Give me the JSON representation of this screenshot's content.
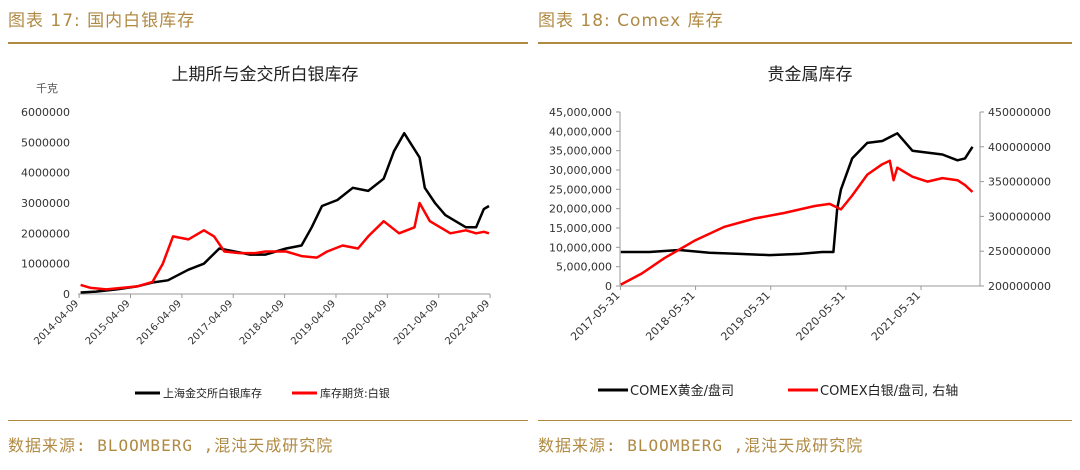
{
  "left": {
    "fig_label": "图表 17: 国内白银库存",
    "source": "数据来源: BLOOMBERG ,混沌天成研究院",
    "chart_title": "上期所与金交所白银库存",
    "unit_label": "千克",
    "legend": [
      "上海金交所白银库存",
      "库存期货:白银"
    ]
  },
  "right": {
    "fig_label": "图表 18: Comex 库存",
    "source": "数据来源: BLOOMBERG ,混沌天成研究院",
    "chart_title": "贵金属库存",
    "legend": [
      "COMEX黄金/盘司",
      "COMEX白银/盘司, 右轴"
    ]
  },
  "colors": {
    "accent": "#b08a43",
    "series_black": "#000000",
    "series_red": "#ff0000"
  },
  "chart_data": [
    {
      "type": "line",
      "title": "上期所与金交所白银库存",
      "ylabel": "千克",
      "ylim": [
        0,
        6000000
      ],
      "yticks": [
        "0",
        "1000000",
        "2000000",
        "3000000",
        "4000000",
        "5000000",
        "6000000"
      ],
      "xlim": [
        2014.25,
        2022.27
      ],
      "xticks": [
        "2014-04-09",
        "2015-04-09",
        "2016-04-09",
        "2017-04-09",
        "2018-04-09",
        "2019-04-09",
        "2020-04-09",
        "2021-04-09",
        "2022-04-09"
      ],
      "series": [
        {
          "name": "上海金交所白银库存",
          "color": "#000000",
          "x": [
            2014.3,
            2014.6,
            2015.0,
            2015.4,
            2015.7,
            2016.0,
            2016.4,
            2016.7,
            2017.0,
            2017.3,
            2017.6,
            2017.9,
            2018.3,
            2018.6,
            2018.8,
            2019.0,
            2019.3,
            2019.6,
            2019.9,
            2020.2,
            2020.4,
            2020.6,
            2020.9,
            2021.0,
            2021.2,
            2021.4,
            2021.6,
            2021.8,
            2022.0,
            2022.15,
            2022.25
          ],
          "y": [
            50000,
            80000,
            150000,
            250000,
            380000,
            450000,
            800000,
            1000000,
            1500000,
            1400000,
            1300000,
            1300000,
            1500000,
            1600000,
            2200000,
            2900000,
            3100000,
            3500000,
            3400000,
            3800000,
            4700000,
            5300000,
            4500000,
            3500000,
            3000000,
            2600000,
            2400000,
            2200000,
            2200000,
            2800000,
            2900000
          ]
        },
        {
          "name": "库存期货:白银",
          "color": "#ff0000",
          "x": [
            2014.3,
            2014.5,
            2014.8,
            2015.1,
            2015.4,
            2015.7,
            2015.9,
            2016.1,
            2016.4,
            2016.7,
            2016.9,
            2017.1,
            2017.4,
            2017.7,
            2017.9,
            2018.3,
            2018.6,
            2018.9,
            2019.1,
            2019.4,
            2019.7,
            2019.9,
            2020.2,
            2020.5,
            2020.8,
            2020.9,
            2021.1,
            2021.3,
            2021.5,
            2021.8,
            2022.0,
            2022.15,
            2022.25
          ],
          "y": [
            300000,
            200000,
            150000,
            200000,
            250000,
            400000,
            1000000,
            1900000,
            1800000,
            2100000,
            1900000,
            1400000,
            1350000,
            1350000,
            1400000,
            1400000,
            1250000,
            1200000,
            1400000,
            1600000,
            1500000,
            1900000,
            2400000,
            2000000,
            2200000,
            3000000,
            2400000,
            2200000,
            2000000,
            2100000,
            2000000,
            2050000,
            2000000
          ]
        }
      ]
    },
    {
      "type": "line",
      "title": "贵金属库存",
      "ylim": [
        0,
        45000000
      ],
      "yticks": [
        "0",
        "5,000,000",
        "10,000,000",
        "15,000,000",
        "20,000,000",
        "25,000,000",
        "30,000,000",
        "35,000,000",
        "40,000,000",
        "45,000,000"
      ],
      "y2lim": [
        200000000,
        450000000
      ],
      "y2ticks": [
        "200000000",
        "250000000",
        "300000000",
        "350000000",
        "400000000",
        "450000000"
      ],
      "xlim": [
        2017.41,
        2022.2
      ],
      "xticks": [
        "2017-05-31",
        "2018-05-31",
        "2019-05-31",
        "2020-05-31",
        "2021-05-31"
      ],
      "series": [
        {
          "name": "COMEX黄金/盘司",
          "color": "#000000",
          "axis": "left",
          "x": [
            2017.42,
            2017.8,
            2018.2,
            2018.6,
            2019.0,
            2019.4,
            2019.8,
            2020.1,
            2020.25,
            2020.3,
            2020.35,
            2020.5,
            2020.7,
            2020.9,
            2021.1,
            2021.3,
            2021.5,
            2021.7,
            2021.9,
            2022.0,
            2022.1
          ],
          "y": [
            8800000,
            8800000,
            9300000,
            8600000,
            8300000,
            8000000,
            8300000,
            8800000,
            8800000,
            20000000,
            25000000,
            33000000,
            37000000,
            37500000,
            39500000,
            35000000,
            34500000,
            34000000,
            32500000,
            33000000,
            36000000
          ]
        },
        {
          "name": "COMEX白银/盘司, 右轴",
          "color": "#ff0000",
          "axis": "right",
          "x": [
            2017.42,
            2017.7,
            2018.0,
            2018.4,
            2018.8,
            2019.2,
            2019.6,
            2020.0,
            2020.2,
            2020.35,
            2020.5,
            2020.7,
            2020.9,
            2021.0,
            2021.05,
            2021.1,
            2021.3,
            2021.5,
            2021.7,
            2021.9,
            2022.0,
            2022.1
          ],
          "y": [
            202000000,
            218000000,
            240000000,
            265000000,
            285000000,
            297000000,
            305000000,
            315000000,
            318000000,
            310000000,
            330000000,
            360000000,
            375000000,
            380000000,
            352000000,
            370000000,
            357000000,
            350000000,
            355000000,
            352000000,
            345000000,
            335000000
          ]
        }
      ]
    }
  ]
}
